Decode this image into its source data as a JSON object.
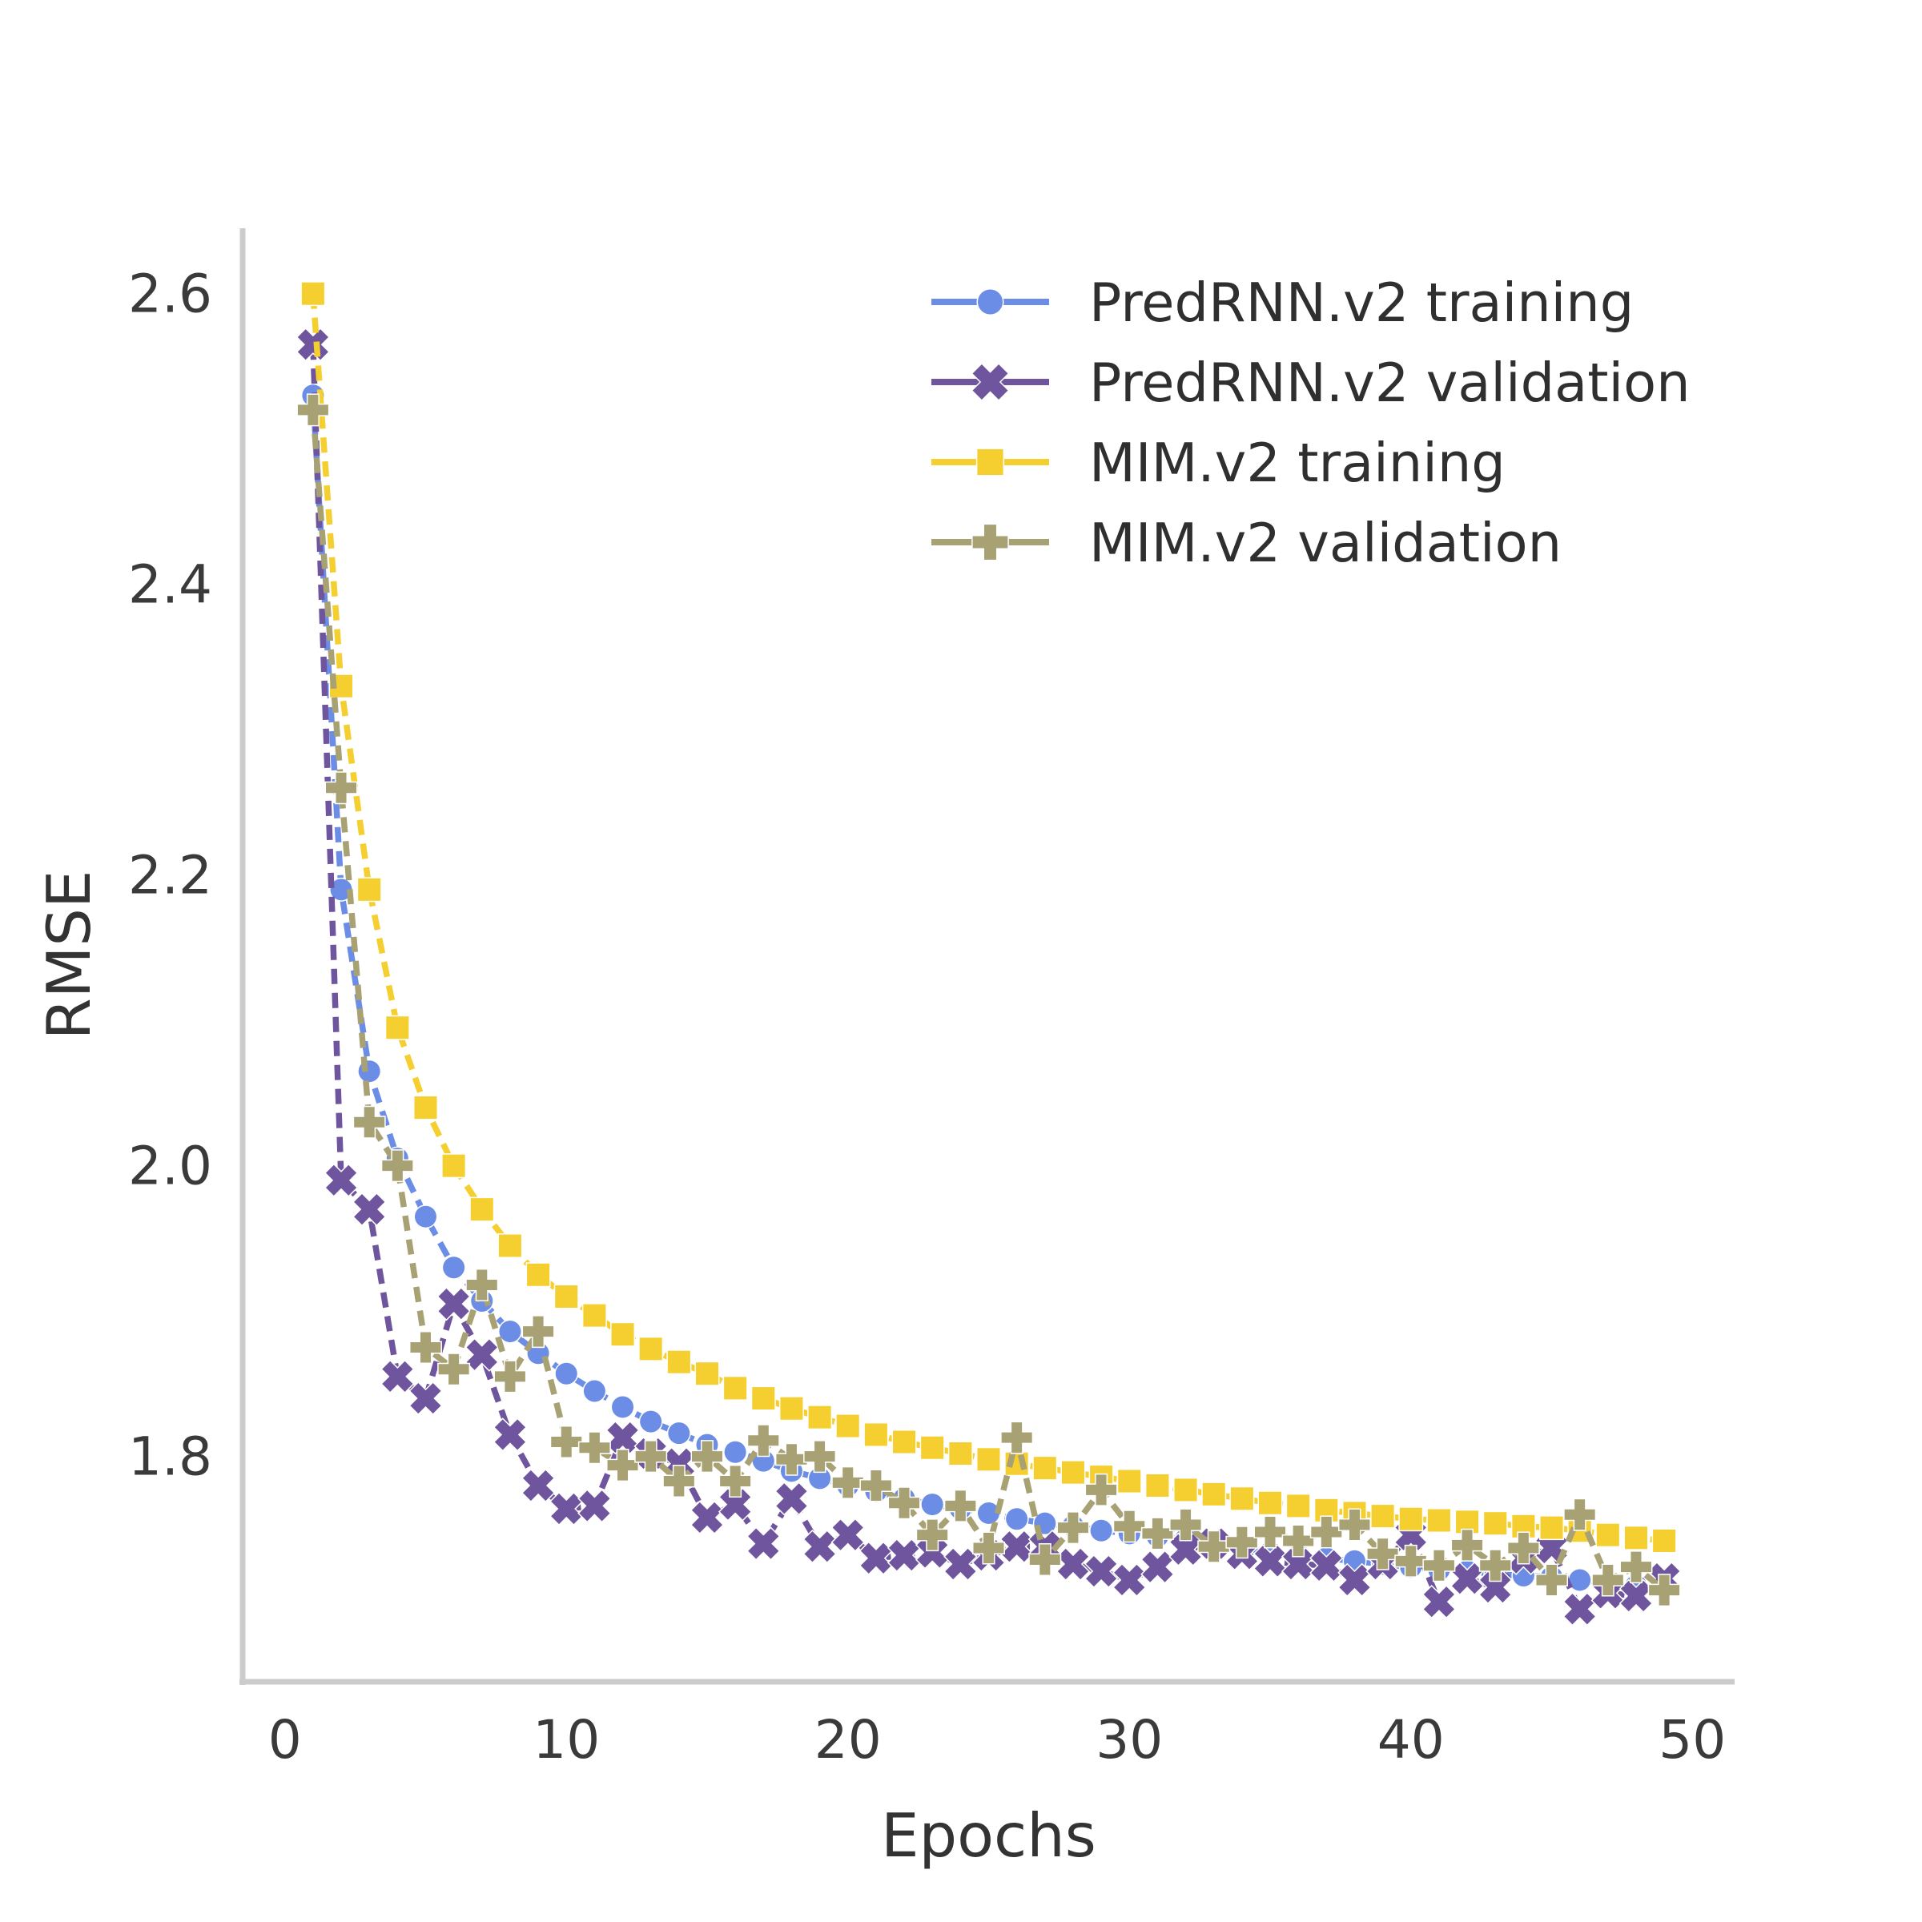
{
  "chart_data": {
    "type": "line",
    "title": "",
    "xlabel": "Epochs",
    "ylabel": "RMSE",
    "x_ticks": [
      0,
      10,
      20,
      30,
      40,
      50
    ],
    "y_ticks": [
      "2.6",
      "2.4",
      "2.2",
      "2.0",
      "1.8"
    ],
    "y_tick_values": [
      2.6,
      2.4,
      2.2,
      2.0,
      1.8
    ],
    "xlim": [
      -1.5,
      51.5
    ],
    "ylim": [
      1.645,
      2.645
    ],
    "grid": false,
    "legend_position": "upper right",
    "axis_color": "#cccccc",
    "epochs": [
      1,
      2,
      3,
      4,
      5,
      6,
      7,
      8,
      9,
      10,
      11,
      12,
      13,
      14,
      15,
      16,
      17,
      18,
      19,
      20,
      21,
      22,
      23,
      24,
      25,
      26,
      27,
      28,
      29,
      30,
      31,
      32,
      33,
      34,
      35,
      36,
      37,
      38,
      39,
      40,
      41,
      42,
      43,
      44,
      45,
      46,
      47,
      48,
      49
    ],
    "series": [
      {
        "name": "PredRNN.v2 training",
        "color": "#6b8de6",
        "marker": "circle",
        "values": [
          2.53,
          2.19,
          2.065,
          2.005,
          1.965,
          1.93,
          1.907,
          1.886,
          1.871,
          1.857,
          1.845,
          1.834,
          1.824,
          1.816,
          1.808,
          1.803,
          1.797,
          1.79,
          1.785,
          1.78,
          1.776,
          1.771,
          1.767,
          1.764,
          1.761,
          1.757,
          1.754,
          1.752,
          1.749,
          1.747,
          1.745,
          1.743,
          1.74,
          1.737,
          1.734,
          1.732,
          1.73,
          1.728,
          1.726,
          1.724,
          1.722,
          1.721,
          1.719,
          1.718,
          1.717,
          1.715,
          1.713,
          1.711,
          1.71
        ]
      },
      {
        "name": "PredRNN.v2 validation",
        "color": "#6f559d",
        "marker": "x",
        "values": [
          2.565,
          1.99,
          1.97,
          1.855,
          1.84,
          1.905,
          1.87,
          1.815,
          1.78,
          1.764,
          1.766,
          1.813,
          1.802,
          1.795,
          1.758,
          1.767,
          1.74,
          1.771,
          1.738,
          1.746,
          1.73,
          1.732,
          1.734,
          1.726,
          1.732,
          1.738,
          1.738,
          1.726,
          1.721,
          1.715,
          1.724,
          1.736,
          1.74,
          1.733,
          1.728,
          1.726,
          1.725,
          1.715,
          1.726,
          1.746,
          1.7,
          1.716,
          1.71,
          1.73,
          1.737,
          1.695,
          1.706,
          1.704,
          1.716
        ]
      },
      {
        "name": "MIM.v2 training",
        "color": "#f5cf2f",
        "marker": "square",
        "values": [
          2.6,
          2.33,
          2.19,
          2.095,
          2.04,
          2.0,
          1.97,
          1.945,
          1.925,
          1.91,
          1.897,
          1.884,
          1.874,
          1.865,
          1.857,
          1.847,
          1.84,
          1.833,
          1.827,
          1.821,
          1.815,
          1.81,
          1.806,
          1.802,
          1.798,
          1.795,
          1.792,
          1.789,
          1.786,
          1.783,
          1.78,
          1.777,
          1.774,
          1.771,
          1.768,
          1.766,
          1.763,
          1.761,
          1.759,
          1.757,
          1.756,
          1.755,
          1.754,
          1.752,
          1.751,
          1.749,
          1.746,
          1.744,
          1.742
        ]
      },
      {
        "name": "MIM.v2 validation",
        "color": "#a7a173",
        "marker": "plus",
        "values": [
          2.52,
          2.26,
          2.03,
          2.0,
          1.875,
          1.86,
          1.918,
          1.855,
          1.886,
          1.81,
          1.806,
          1.794,
          1.8,
          1.783,
          1.8,
          1.783,
          1.811,
          1.798,
          1.8,
          1.782,
          1.78,
          1.768,
          1.746,
          1.766,
          1.737,
          1.813,
          1.729,
          1.751,
          1.777,
          1.752,
          1.747,
          1.753,
          1.738,
          1.741,
          1.748,
          1.742,
          1.748,
          1.753,
          1.733,
          1.728,
          1.725,
          1.739,
          1.725,
          1.737,
          1.715,
          1.76,
          1.715,
          1.724,
          1.708
        ]
      }
    ],
    "legend": [
      {
        "label": "PredRNN.v2 training"
      },
      {
        "label": "PredRNN.v2 validation"
      },
      {
        "label": "MIM.v2 training"
      },
      {
        "label": "MIM.v2 validation"
      }
    ],
    "draw_order": [
      0,
      1,
      2,
      3
    ]
  }
}
